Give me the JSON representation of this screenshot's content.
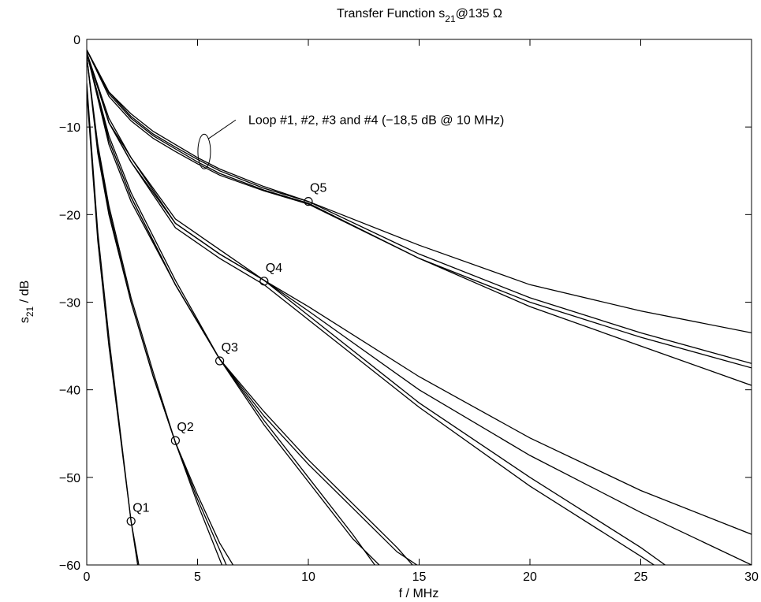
{
  "chart_data": {
    "type": "line",
    "title": {
      "main": "Transfer Function s",
      "sub": "21",
      "rest": "@135 Ω"
    },
    "xlabel": "f / MHz",
    "ylabel": {
      "main": "s",
      "sub": "21",
      "rest": " / dB"
    },
    "xlim": [
      0,
      30
    ],
    "ylim": [
      -60,
      0
    ],
    "xticks": [
      0,
      5,
      10,
      15,
      20,
      25,
      30
    ],
    "yticks": [
      0,
      -10,
      -20,
      -30,
      -40,
      -50,
      -60
    ],
    "grid": false,
    "series": [
      {
        "x": [
          0,
          0.5,
          1,
          2,
          2.3
        ],
        "y": [
          -5,
          -22,
          -34,
          -55,
          -60
        ]
      },
      {
        "x": [
          0,
          0.5,
          1,
          2,
          2.35
        ],
        "y": [
          -6,
          -23,
          -35,
          -55,
          -60
        ]
      },
      {
        "x": [
          0,
          0.5,
          1,
          2,
          3,
          4,
          5,
          6,
          6.6
        ],
        "y": [
          -2,
          -13,
          -20,
          -30,
          -38.5,
          -46,
          -52,
          -57.5,
          -60
        ]
      },
      {
        "x": [
          0,
          0.5,
          1,
          2,
          3,
          4,
          5,
          6.3
        ],
        "y": [
          -2,
          -12,
          -19,
          -29.5,
          -38,
          -46,
          -52.5,
          -60
        ]
      },
      {
        "x": [
          0,
          0.5,
          1,
          2,
          3,
          4,
          5,
          6.1
        ],
        "y": [
          -2,
          -12.5,
          -19.5,
          -30,
          -38.5,
          -46,
          -53,
          -60
        ]
      },
      {
        "x": [
          0,
          1,
          2,
          4,
          6,
          8,
          10,
          12,
          13
        ],
        "y": [
          -1.5,
          -11.5,
          -18,
          -28,
          -36.5,
          -43.5,
          -50,
          -56.5,
          -60
        ]
      },
      {
        "x": [
          0,
          1,
          2,
          4,
          6,
          8,
          10,
          12,
          13.2
        ],
        "y": [
          -1.5,
          -12,
          -18.5,
          -28,
          -36.5,
          -44,
          -50.5,
          -57,
          -60
        ]
      },
      {
        "x": [
          0,
          1,
          2,
          4,
          6,
          8,
          10,
          12,
          14,
          14.7
        ],
        "y": [
          -1.5,
          -11,
          -17.5,
          -27.5,
          -36.5,
          -42.5,
          -48,
          -53,
          -58,
          -60
        ]
      },
      {
        "x": [
          0,
          1,
          2,
          4,
          6,
          8,
          10,
          12,
          14,
          14.9
        ],
        "y": [
          -1.5,
          -11.5,
          -18,
          -28,
          -36.5,
          -43,
          -48.5,
          -53.5,
          -58.5,
          -60
        ]
      },
      {
        "x": [
          0,
          1,
          2,
          4,
          6,
          8,
          10,
          15,
          20,
          25,
          26.1
        ],
        "y": [
          -1.5,
          -9.5,
          -13.5,
          -21,
          -24.5,
          -27.5,
          -31.5,
          -41.5,
          -50,
          -58,
          -60
        ]
      },
      {
        "x": [
          0,
          1,
          2,
          4,
          6,
          8,
          10,
          15,
          20,
          25,
          25.6
        ],
        "y": [
          -1.5,
          -9.5,
          -14,
          -21.5,
          -25,
          -28,
          -32,
          -42,
          -51,
          -59,
          -60
        ]
      },
      {
        "x": [
          0,
          1,
          2,
          4,
          6,
          8,
          10,
          15,
          20,
          25,
          30
        ],
        "y": [
          -1.5,
          -9,
          -13.5,
          -20.5,
          -24,
          -27.5,
          -30.5,
          -38.5,
          -45.5,
          -51.5,
          -56.5
        ]
      },
      {
        "x": [
          0,
          1,
          2,
          4,
          6,
          8,
          10,
          15,
          20,
          25,
          30
        ],
        "y": [
          -1.5,
          -9.5,
          -14,
          -21,
          -24.5,
          -27.5,
          -31,
          -40,
          -47.5,
          -54,
          -60
        ]
      },
      {
        "x": [
          0,
          1,
          2,
          3,
          4,
          5,
          6,
          8,
          10,
          15,
          20,
          25,
          30
        ],
        "y": [
          -1.2,
          -6,
          -8.5,
          -10.5,
          -12,
          -13.5,
          -14.8,
          -16.8,
          -18.5,
          -23.5,
          -28,
          -31,
          -33.5
        ]
      },
      {
        "x": [
          0,
          1,
          2,
          3,
          4,
          5,
          6,
          8,
          10,
          15,
          20,
          25,
          30
        ],
        "y": [
          -1.2,
          -6,
          -8.8,
          -10.8,
          -12.3,
          -13.7,
          -15,
          -17,
          -18.5,
          -24.5,
          -29.5,
          -33.5,
          -37
        ]
      },
      {
        "x": [
          0,
          1,
          2,
          3,
          4,
          5,
          6,
          8,
          10,
          15,
          20,
          25,
          30
        ],
        "y": [
          -1.2,
          -6.2,
          -9,
          -11,
          -12.5,
          -14,
          -15.3,
          -17.2,
          -18.7,
          -25,
          -30,
          -34,
          -37.5
        ]
      },
      {
        "x": [
          0,
          1,
          2,
          3,
          4,
          5,
          6,
          8,
          10,
          15,
          20,
          25,
          30
        ],
        "y": [
          -1.2,
          -6.5,
          -9.3,
          -11.3,
          -12.8,
          -14.2,
          -15.5,
          -17.3,
          -18.8,
          -25,
          -30.5,
          -35,
          -39.5
        ]
      }
    ],
    "markers": [
      {
        "label": "Q1",
        "x": 2,
        "y": -55
      },
      {
        "label": "Q2",
        "x": 4,
        "y": -45.8
      },
      {
        "label": "Q3",
        "x": 6,
        "y": -36.7
      },
      {
        "label": "Q4",
        "x": 8,
        "y": -27.6
      },
      {
        "label": "Q5",
        "x": 10,
        "y": -18.5
      }
    ],
    "annotation": {
      "text": "Loop #1, #2, #3 and #4 (−18,5 dB @ 10 MHz)",
      "x": 5.3,
      "y": -12.8
    }
  }
}
